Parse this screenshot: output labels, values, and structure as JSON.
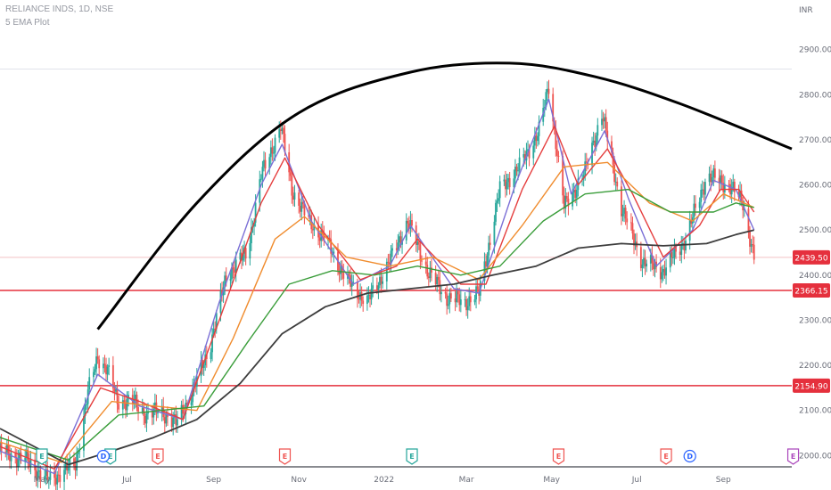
{
  "header": {
    "symbol": "RELIANCE INDS, 1D, NSE",
    "indicator": "5 EMA Plot"
  },
  "chart_data": {
    "type": "candlestick",
    "currency": "INR",
    "y_ticks": [
      2000,
      2100,
      2200,
      2300,
      2400,
      2500,
      2600,
      2700,
      2800,
      2900
    ],
    "y_tick_labels": [
      "2000.00",
      "2100.00",
      "2200.00",
      "2300.00",
      "2400.00",
      "2500.00",
      "2600.00",
      "2700.00",
      "2800.00",
      "2900.00"
    ],
    "ylim": [
      1975,
      3010
    ],
    "x_ticks": [
      "May",
      "Jul",
      "Sep",
      "Nov",
      "2022",
      "Mar",
      "May",
      "Jul",
      "Sep"
    ],
    "x_tick_dates": [
      "2021-05-01",
      "2021-07-01",
      "2021-09-01",
      "2021-11-01",
      "2022-01-01",
      "2022-03-01",
      "2022-05-01",
      "2022-07-01",
      "2022-09-01"
    ],
    "xlim": [
      "2021-04-01",
      "2022-10-20"
    ],
    "closes": [
      [
        "2021-04-01",
        2010
      ],
      [
        "2021-04-20",
        1990
      ],
      [
        "2021-05-05",
        1945
      ],
      [
        "2021-05-25",
        1980
      ],
      [
        "2021-06-03",
        2140
      ],
      [
        "2021-06-10",
        2220
      ],
      [
        "2021-06-17",
        2190
      ],
      [
        "2021-06-24",
        2120
      ],
      [
        "2021-07-05",
        2120
      ],
      [
        "2021-07-15",
        2090
      ],
      [
        "2021-07-25",
        2100
      ],
      [
        "2021-08-05",
        2070
      ],
      [
        "2021-08-18",
        2150
      ],
      [
        "2021-08-30",
        2250
      ],
      [
        "2021-09-10",
        2400
      ],
      [
        "2021-09-25",
        2450
      ],
      [
        "2021-10-05",
        2620
      ],
      [
        "2021-10-19",
        2730
      ],
      [
        "2021-10-27",
        2590
      ],
      [
        "2021-11-08",
        2520
      ],
      [
        "2021-11-20",
        2480
      ],
      [
        "2021-12-05",
        2390
      ],
      [
        "2021-12-20",
        2340
      ],
      [
        "2022-01-05",
        2430
      ],
      [
        "2022-01-18",
        2520
      ],
      [
        "2022-02-01",
        2410
      ],
      [
        "2022-02-15",
        2350
      ],
      [
        "2022-02-28",
        2340
      ],
      [
        "2022-03-10",
        2360
      ],
      [
        "2022-03-25",
        2590
      ],
      [
        "2022-04-08",
        2640
      ],
      [
        "2022-04-22",
        2720
      ],
      [
        "2022-04-29",
        2820
      ],
      [
        "2022-05-10",
        2550
      ],
      [
        "2022-05-25",
        2630
      ],
      [
        "2022-06-06",
        2760
      ],
      [
        "2022-06-20",
        2550
      ],
      [
        "2022-07-05",
        2430
      ],
      [
        "2022-07-20",
        2410
      ],
      [
        "2022-08-05",
        2480
      ],
      [
        "2022-08-20",
        2620
      ],
      [
        "2022-09-05",
        2600
      ],
      [
        "2022-09-15",
        2560
      ],
      [
        "2022-09-23",
        2439.5
      ]
    ],
    "ema_series": [
      {
        "color": "#7b6fd6",
        "values": [
          [
            "2021-04-01",
            2010
          ],
          [
            "2021-05-10",
            1960
          ],
          [
            "2021-06-10",
            2180
          ],
          [
            "2021-07-10",
            2110
          ],
          [
            "2021-08-10",
            2080
          ],
          [
            "2021-09-05",
            2340
          ],
          [
            "2021-10-05",
            2600
          ],
          [
            "2021-10-20",
            2690
          ],
          [
            "2021-11-10",
            2520
          ],
          [
            "2021-12-10",
            2380
          ],
          [
            "2022-01-05",
            2420
          ],
          [
            "2022-01-20",
            2510
          ],
          [
            "2022-02-20",
            2370
          ],
          [
            "2022-03-10",
            2360
          ],
          [
            "2022-04-05",
            2600
          ],
          [
            "2022-04-29",
            2790
          ],
          [
            "2022-05-15",
            2580
          ],
          [
            "2022-06-08",
            2720
          ],
          [
            "2022-06-25",
            2570
          ],
          [
            "2022-07-15",
            2420
          ],
          [
            "2022-08-10",
            2500
          ],
          [
            "2022-08-25",
            2610
          ],
          [
            "2022-09-10",
            2590
          ],
          [
            "2022-09-23",
            2500
          ]
        ]
      },
      {
        "color": "#e53e3e",
        "values": [
          [
            "2021-04-01",
            2020
          ],
          [
            "2021-05-10",
            1970
          ],
          [
            "2021-06-12",
            2150
          ],
          [
            "2021-07-10",
            2120
          ],
          [
            "2021-08-10",
            2080
          ],
          [
            "2021-09-05",
            2300
          ],
          [
            "2021-10-05",
            2560
          ],
          [
            "2021-10-22",
            2660
          ],
          [
            "2021-11-15",
            2510
          ],
          [
            "2021-12-15",
            2390
          ],
          [
            "2022-01-10",
            2420
          ],
          [
            "2022-01-25",
            2480
          ],
          [
            "2022-02-25",
            2380
          ],
          [
            "2022-03-15",
            2380
          ],
          [
            "2022-04-10",
            2590
          ],
          [
            "2022-05-03",
            2730
          ],
          [
            "2022-05-20",
            2600
          ],
          [
            "2022-06-10",
            2680
          ],
          [
            "2022-06-28",
            2580
          ],
          [
            "2022-07-20",
            2440
          ],
          [
            "2022-08-15",
            2510
          ],
          [
            "2022-08-30",
            2590
          ],
          [
            "2022-09-12",
            2590
          ],
          [
            "2022-09-23",
            2540
          ]
        ]
      },
      {
        "color": "#f08c2e",
        "values": [
          [
            "2021-04-01",
            2030
          ],
          [
            "2021-05-15",
            1985
          ],
          [
            "2021-06-20",
            2120
          ],
          [
            "2021-07-20",
            2110
          ],
          [
            "2021-08-20",
            2100
          ],
          [
            "2021-09-15",
            2260
          ],
          [
            "2021-10-15",
            2480
          ],
          [
            "2021-11-05",
            2530
          ],
          [
            "2021-12-05",
            2440
          ],
          [
            "2022-01-05",
            2420
          ],
          [
            "2022-02-05",
            2440
          ],
          [
            "2022-03-10",
            2390
          ],
          [
            "2022-04-10",
            2510
          ],
          [
            "2022-05-10",
            2640
          ],
          [
            "2022-06-10",
            2650
          ],
          [
            "2022-07-10",
            2560
          ],
          [
            "2022-08-10",
            2520
          ],
          [
            "2022-09-01",
            2580
          ],
          [
            "2022-09-23",
            2550
          ]
        ]
      },
      {
        "color": "#3a9d3a",
        "values": [
          [
            "2021-04-01",
            2040
          ],
          [
            "2021-05-20",
            1990
          ],
          [
            "2021-06-25",
            2090
          ],
          [
            "2021-07-25",
            2100
          ],
          [
            "2021-08-25",
            2110
          ],
          [
            "2021-09-25",
            2250
          ],
          [
            "2021-10-25",
            2380
          ],
          [
            "2021-11-25",
            2410
          ],
          [
            "2021-12-25",
            2400
          ],
          [
            "2022-01-25",
            2420
          ],
          [
            "2022-02-25",
            2400
          ],
          [
            "2022-03-25",
            2420
          ],
          [
            "2022-04-25",
            2520
          ],
          [
            "2022-05-25",
            2580
          ],
          [
            "2022-06-25",
            2590
          ],
          [
            "2022-07-25",
            2540
          ],
          [
            "2022-08-25",
            2540
          ],
          [
            "2022-09-10",
            2560
          ],
          [
            "2022-09-23",
            2550
          ]
        ]
      },
      {
        "color": "#3d3d3d",
        "values": [
          [
            "2021-04-01",
            2060
          ],
          [
            "2021-05-20",
            1980
          ],
          [
            "2021-06-20",
            2010
          ],
          [
            "2021-07-20",
            2040
          ],
          [
            "2021-08-20",
            2080
          ],
          [
            "2021-09-20",
            2160
          ],
          [
            "2021-10-20",
            2270
          ],
          [
            "2021-11-20",
            2330
          ],
          [
            "2021-12-20",
            2360
          ],
          [
            "2022-01-20",
            2370
          ],
          [
            "2022-02-20",
            2380
          ],
          [
            "2022-03-20",
            2400
          ],
          [
            "2022-04-20",
            2420
          ],
          [
            "2022-05-20",
            2460
          ],
          [
            "2022-06-20",
            2470
          ],
          [
            "2022-07-20",
            2465
          ],
          [
            "2022-08-20",
            2470
          ],
          [
            "2022-09-10",
            2490
          ],
          [
            "2022-09-23",
            2500
          ]
        ]
      }
    ],
    "horizontal_lines": [
      {
        "value": 2366.15,
        "label": "2366.15",
        "color": "#e5303d"
      },
      {
        "value": 2154.9,
        "label": "2154.90",
        "color": "#e5303d"
      }
    ],
    "last_price": {
      "value": 2439.5,
      "label": "2439.50",
      "color": "#e5303d"
    },
    "arc": {
      "points": [
        [
          "2021-06-10",
          2280
        ],
        [
          "2021-08-20",
          2560
        ],
        [
          "2021-11-01",
          2760
        ],
        [
          "2022-01-20",
          2850
        ],
        [
          "2022-04-01",
          2870
        ],
        [
          "2022-06-01",
          2840
        ],
        [
          "2022-08-01",
          2780
        ],
        [
          "2022-10-20",
          2680
        ]
      ],
      "color": "#000000"
    },
    "events": [
      {
        "label": "E",
        "date": "2021-05-01",
        "color": "#26a69a",
        "shape": "flag"
      },
      {
        "label": "E",
        "date": "2021-06-19",
        "color": "#26a69a",
        "shape": "flag"
      },
      {
        "label": "D",
        "date": "2021-06-14",
        "color": "#2962ff",
        "shape": "circle"
      },
      {
        "label": "E",
        "date": "2021-07-23",
        "color": "#ef5350",
        "shape": "flag"
      },
      {
        "label": "E",
        "date": "2021-10-22",
        "color": "#ef5350",
        "shape": "flag"
      },
      {
        "label": "E",
        "date": "2022-01-21",
        "color": "#26a69a",
        "shape": "flag"
      },
      {
        "label": "E",
        "date": "2022-05-06",
        "color": "#ef5350",
        "shape": "flag"
      },
      {
        "label": "E",
        "date": "2022-07-22",
        "color": "#ef5350",
        "shape": "flag"
      },
      {
        "label": "D",
        "date": "2022-08-08",
        "color": "#2962ff",
        "shape": "circle"
      },
      {
        "label": "E",
        "date": "2022-10-21",
        "color": "#ab47bc",
        "shape": "flag"
      }
    ]
  }
}
